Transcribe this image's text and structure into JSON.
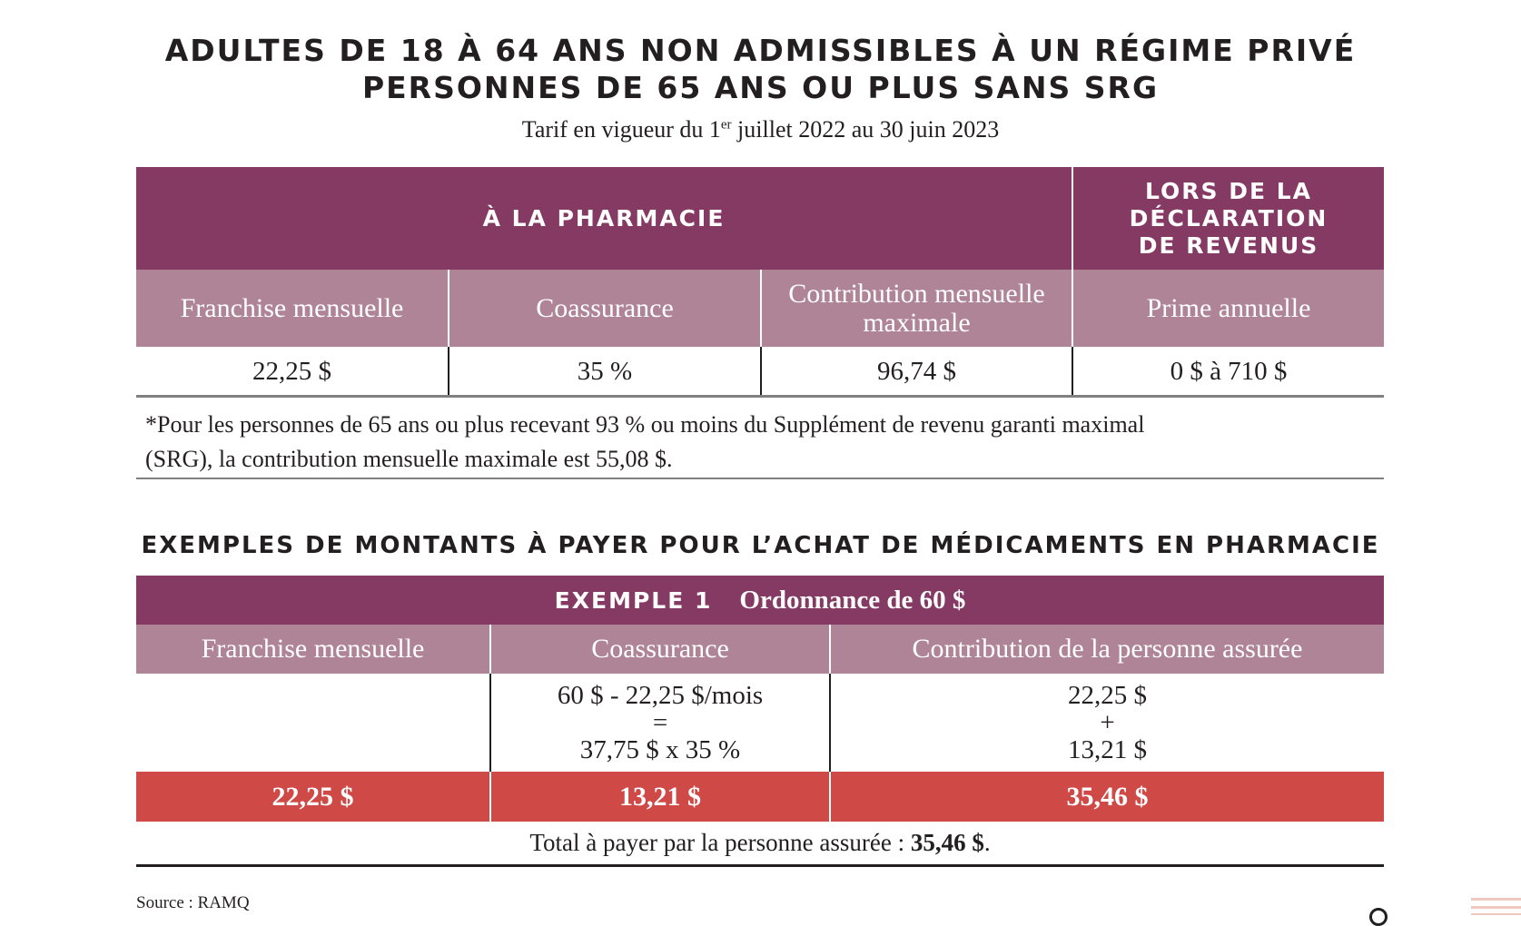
{
  "title": {
    "line1": "ADULTES DE 18 À 64 ANS NON ADMISSIBLES À UN RÉGIME PRIVÉ",
    "line2": "PERSONNES DE 65 ANS OU PLUS SANS SRG",
    "subtitle_pre": "Tarif en vigueur du 1",
    "subtitle_sup": "er",
    "subtitle_post": " juillet 2022 au 30 juin 2023"
  },
  "table1": {
    "group_pharmacy": "À LA PHARMACIE",
    "group_tax": [
      "LORS DE LA",
      "DÉCLARATION",
      "DE REVENUS"
    ],
    "headers": [
      "Franchise mensuelle",
      "Coassurance",
      "Contribution mensuelle maximale",
      "Prime annuelle"
    ],
    "values": [
      "22,25 $",
      "35 %",
      "96,74 $",
      "0 $ à 710 $"
    ],
    "footnote_line1": "*Pour les personnes de 65 ans ou plus recevant 93 % ou moins du Supplément de revenu garanti maximal",
    "footnote_line2": "(SRG), la contribution mensuelle maximale est 55,08 $."
  },
  "examples": {
    "section_title": "EXEMPLES DE MONTANTS À PAYER POUR L’ACHAT DE MÉDICAMENTS EN PHARMACIE",
    "example_label": "EXEMPLE 1",
    "example_desc": "Ordonnance de 60 $",
    "headers": [
      "Franchise mensuelle",
      "Coassurance",
      "Contribution de la personne assurée"
    ],
    "calc_coassurance": [
      "60 $ - 22,25 $/mois",
      "=",
      "37,75 $ x 35 %"
    ],
    "calc_contribution": [
      "22,25 $",
      "+",
      "13,21 $"
    ],
    "results": [
      "22,25 $",
      "13,21 $",
      "35,46 $"
    ],
    "total_text": "Total à payer par la personne assurée : ",
    "total_value": "35,46 $",
    "total_end": "."
  },
  "source": "Source : RAMQ",
  "colors": {
    "dark_purple": "#853a63",
    "mauve": "#b08497",
    "red": "#cf4a47"
  }
}
